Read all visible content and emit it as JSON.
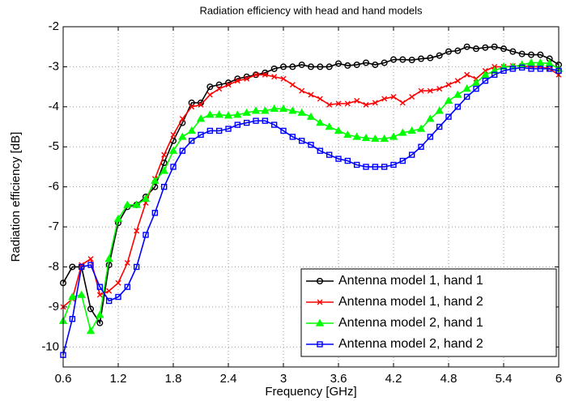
{
  "chart_data": {
    "type": "line",
    "title": "Radiation efficiency with head and hand models",
    "x_label": "Frequency [GHz]",
    "y_label": "Radiation efficiency [dB]",
    "x": [
      0.6,
      0.7,
      0.8,
      0.9,
      1.0,
      1.1,
      1.2,
      1.3,
      1.4,
      1.5,
      1.6,
      1.7,
      1.8,
      1.9,
      2.0,
      2.1,
      2.2,
      2.3,
      2.4,
      2.5,
      2.6,
      2.7,
      2.8,
      2.9,
      3.0,
      3.1,
      3.2,
      3.3,
      3.4,
      3.5,
      3.6,
      3.7,
      3.8,
      3.9,
      4.0,
      4.1,
      4.2,
      4.3,
      4.4,
      4.5,
      4.6,
      4.7,
      4.8,
      4.9,
      5.0,
      5.1,
      5.2,
      5.3,
      5.4,
      5.5,
      5.6,
      5.7,
      5.8,
      5.9,
      6.0
    ],
    "series": [
      {
        "name": "Antenna model 1, hand 1",
        "color": "#000000",
        "marker": "circle",
        "values": [
          -8.4,
          -8.0,
          -8.0,
          -9.05,
          -9.4,
          -7.95,
          -6.9,
          -6.5,
          -6.45,
          -6.25,
          -6.0,
          -5.4,
          -4.85,
          -4.4,
          -3.9,
          -3.9,
          -3.5,
          -3.45,
          -3.4,
          -3.3,
          -3.25,
          -3.2,
          -3.15,
          -3.05,
          -3.0,
          -3.0,
          -2.95,
          -3.0,
          -3.0,
          -3.0,
          -2.92,
          -2.97,
          -2.95,
          -2.9,
          -2.95,
          -2.9,
          -2.82,
          -2.82,
          -2.83,
          -2.8,
          -2.78,
          -2.72,
          -2.62,
          -2.6,
          -2.5,
          -2.55,
          -2.52,
          -2.5,
          -2.55,
          -2.62,
          -2.68,
          -2.7,
          -2.7,
          -2.8,
          -2.95
        ]
      },
      {
        "name": "Antenna model 1, hand 2",
        "color": "#ff0000",
        "marker": "x",
        "values": [
          -9.0,
          -8.8,
          -7.95,
          -7.8,
          -8.7,
          -8.6,
          -8.4,
          -7.9,
          -7.1,
          -6.4,
          -5.8,
          -5.2,
          -4.7,
          -4.3,
          -4.0,
          -3.95,
          -3.7,
          -3.55,
          -3.45,
          -3.35,
          -3.3,
          -3.2,
          -3.2,
          -3.25,
          -3.3,
          -3.45,
          -3.6,
          -3.7,
          -3.8,
          -3.95,
          -3.92,
          -3.92,
          -3.85,
          -3.95,
          -3.9,
          -3.8,
          -3.75,
          -3.9,
          -3.75,
          -3.6,
          -3.6,
          -3.55,
          -3.45,
          -3.35,
          -3.2,
          -3.3,
          -3.1,
          -3.0,
          -3.0,
          -2.98,
          -2.98,
          -3.0,
          -3.0,
          -3.05,
          -3.2
        ]
      },
      {
        "name": "Antenna model 2, hand 1",
        "color": "#00ff00",
        "marker": "triangle",
        "values": [
          -9.35,
          -8.75,
          -8.7,
          -9.6,
          -9.2,
          -7.8,
          -6.8,
          -6.45,
          -6.45,
          -6.3,
          -5.85,
          -5.6,
          -5.1,
          -4.75,
          -4.6,
          -4.3,
          -4.2,
          -4.2,
          -4.22,
          -4.2,
          -4.15,
          -4.1,
          -4.1,
          -4.05,
          -4.05,
          -4.1,
          -4.15,
          -4.25,
          -4.4,
          -4.5,
          -4.6,
          -4.7,
          -4.75,
          -4.78,
          -4.8,
          -4.8,
          -4.75,
          -4.65,
          -4.6,
          -4.55,
          -4.3,
          -4.1,
          -3.85,
          -3.7,
          -3.55,
          -3.4,
          -3.2,
          -3.1,
          -3.0,
          -3.0,
          -2.95,
          -2.9,
          -2.9,
          -2.92,
          -3.05
        ]
      },
      {
        "name": "Antenna model 2, hand 2",
        "color": "#0000ff",
        "marker": "square",
        "values": [
          -10.2,
          -9.3,
          -8.0,
          -7.95,
          -8.5,
          -8.85,
          -8.75,
          -8.5,
          -8.0,
          -7.2,
          -6.65,
          -6.0,
          -5.5,
          -5.1,
          -4.85,
          -4.7,
          -4.6,
          -4.6,
          -4.55,
          -4.45,
          -4.4,
          -4.35,
          -4.35,
          -4.45,
          -4.6,
          -4.75,
          -4.85,
          -4.95,
          -5.1,
          -5.2,
          -5.3,
          -5.35,
          -5.45,
          -5.5,
          -5.5,
          -5.5,
          -5.45,
          -5.35,
          -5.2,
          -5.0,
          -4.75,
          -4.5,
          -4.25,
          -4.0,
          -3.75,
          -3.55,
          -3.35,
          -3.2,
          -3.1,
          -3.05,
          -3.02,
          -3.05,
          -3.05,
          -3.05,
          -3.1
        ]
      }
    ],
    "xlim": [
      0.6,
      6
    ],
    "xticks": [
      0.6,
      1.2,
      1.8,
      2.4,
      3,
      3.6,
      4.2,
      4.8,
      5.4,
      6
    ],
    "ylim": [
      -10.5,
      -2
    ],
    "yticks": [
      -10,
      -9,
      -8,
      -7,
      -6,
      -5,
      -4,
      -3,
      -2
    ],
    "grid": true,
    "legend": "lower right"
  }
}
